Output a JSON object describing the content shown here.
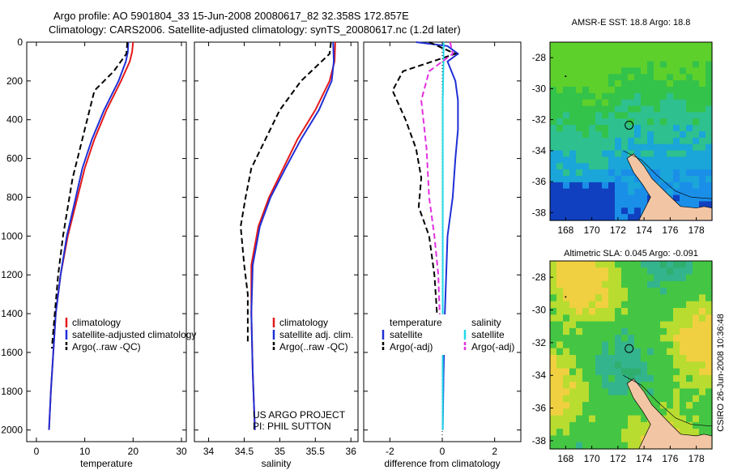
{
  "header": {
    "line1": "Argo profile: AO 5901804_33 15-Jun-2008 20080617_82 32.358S 172.857E",
    "line2": "Climatology: CARS2006. Satellite-adjusted climatology: synTS_20080617.nc (1.2d later)"
  },
  "side_label": "CSIRO 26-Jun-2008 10:36:48",
  "project": {
    "line1": "US ARGO PROJECT",
    "line2": "PI: PHIL SUTTON"
  },
  "maps": [
    {
      "title": "AMSR-E SST: 18.8 Argo: 18.8"
    },
    {
      "title": "Altimetric SLA: 0.045 Argo: -0.091"
    }
  ],
  "colors": {
    "climatology": "#e41a1a",
    "satellite": "#1f2fd6",
    "argo": "#000000",
    "argo_adj": "#e030e0",
    "satellite_sal": "#22d8e8",
    "land": "#f2c6a4"
  },
  "chart_data": [
    {
      "type": "line",
      "xlabel": "temperature",
      "xlim": [
        -2,
        31
      ],
      "ylim": [
        2060,
        0
      ],
      "xticks": [
        "0",
        "10",
        "20",
        "30"
      ],
      "yticks": [
        "0",
        "200",
        "400",
        "600",
        "800",
        "1000",
        "1200",
        "1400",
        "1600",
        "1800",
        "2000"
      ],
      "legend": [
        "climatology",
        "satellite-adjusted climatology",
        "Argo(..raw -QC)"
      ],
      "series": [
        {
          "name": "climatology",
          "points": [
            [
              20,
              0
            ],
            [
              19.8,
              50
            ],
            [
              19.3,
              100
            ],
            [
              17.5,
              200
            ],
            [
              14.5,
              350
            ],
            [
              12,
              500
            ],
            [
              10,
              650
            ],
            [
              8,
              850
            ],
            [
              6.5,
              1000
            ],
            [
              5,
              1200
            ],
            [
              4,
              1400
            ],
            [
              3.5,
              1600
            ],
            [
              3,
              1800
            ],
            [
              2.6,
              2000
            ]
          ]
        },
        {
          "name": "satellite-adjusted climatology",
          "points": [
            [
              19,
              0
            ],
            [
              18.9,
              50
            ],
            [
              18.5,
              100
            ],
            [
              17,
              200
            ],
            [
              14,
              350
            ],
            [
              11.5,
              500
            ],
            [
              9.5,
              650
            ],
            [
              7.7,
              850
            ],
            [
              6.3,
              1000
            ],
            [
              5,
              1200
            ],
            [
              4,
              1400
            ],
            [
              3.5,
              1600
            ],
            [
              3,
              1800
            ],
            [
              2.6,
              2000
            ]
          ]
        },
        {
          "name": "Argo(..raw -QC)",
          "points": [
            [
              18.8,
              0
            ],
            [
              18.6,
              60
            ],
            [
              16,
              150
            ],
            [
              12,
              250
            ],
            [
              10.5,
              400
            ],
            [
              9,
              550
            ],
            [
              7.5,
              700
            ],
            [
              6.5,
              850
            ],
            [
              5.5,
              1000
            ],
            [
              4.5,
              1200
            ],
            [
              3.8,
              1400
            ],
            [
              3.2,
              1580
            ]
          ]
        }
      ]
    },
    {
      "type": "line",
      "xlabel": "salinity",
      "xlim": [
        33.8,
        36.1
      ],
      "ylim": [
        2060,
        0
      ],
      "xticks": [
        "34",
        "34.5",
        "35",
        "35.5",
        "36"
      ],
      "yticks": [],
      "legend": [
        "climatology",
        "satellite adj. clim.",
        "Argo(..raw -QC)"
      ],
      "series": [
        {
          "name": "climatology",
          "points": [
            [
              35.78,
              0
            ],
            [
              35.77,
              100
            ],
            [
              35.7,
              200
            ],
            [
              35.5,
              350
            ],
            [
              35.25,
              500
            ],
            [
              35.05,
              650
            ],
            [
              34.85,
              800
            ],
            [
              34.7,
              950
            ],
            [
              34.6,
              1150
            ],
            [
              34.6,
              1400
            ],
            [
              34.62,
              1700
            ],
            [
              34.65,
              2000
            ]
          ]
        },
        {
          "name": "satellite adj. clim.",
          "points": [
            [
              35.75,
              0
            ],
            [
              35.76,
              100
            ],
            [
              35.73,
              200
            ],
            [
              35.55,
              350
            ],
            [
              35.3,
              500
            ],
            [
              35.08,
              650
            ],
            [
              34.87,
              800
            ],
            [
              34.72,
              950
            ],
            [
              34.62,
              1150
            ],
            [
              34.6,
              1400
            ],
            [
              34.62,
              1700
            ],
            [
              34.65,
              2000
            ]
          ]
        },
        {
          "name": "Argo(..raw -QC)",
          "points": [
            [
              35.72,
              0
            ],
            [
              35.7,
              60
            ],
            [
              35.3,
              200
            ],
            [
              35.0,
              350
            ],
            [
              34.8,
              500
            ],
            [
              34.6,
              650
            ],
            [
              34.52,
              800
            ],
            [
              34.45,
              950
            ],
            [
              34.5,
              1150
            ],
            [
              34.55,
              1300
            ],
            [
              34.55,
              1550
            ]
          ]
        }
      ]
    },
    {
      "type": "line",
      "xlabel": "difference from climatology",
      "xlim": [
        -3,
        3
      ],
      "ylim": [
        2060,
        0
      ],
      "xticks": [
        "-2",
        "0",
        "2"
      ],
      "yticks": [],
      "legend_groups": [
        {
          "heading": "temperature",
          "items": [
            "satellite",
            "Argo(-adj)"
          ]
        },
        {
          "heading": "salinity",
          "items": [
            "satellite",
            "Argo(-adj)"
          ]
        }
      ],
      "series": [
        {
          "name": "satellite",
          "group": "temperature",
          "points": [
            [
              -1,
              0
            ],
            [
              0.2,
              20
            ],
            [
              0.6,
              60
            ],
            [
              0.2,
              100
            ],
            [
              0.5,
              200
            ],
            [
              0.6,
              300
            ],
            [
              0.6,
              450
            ],
            [
              0.5,
              600
            ],
            [
              0.4,
              800
            ],
            [
              0.2,
              1000
            ],
            [
              0.1,
              1400
            ],
            [
              0.05,
              1700
            ],
            [
              0.02,
              2000
            ]
          ]
        },
        {
          "name": "Argo(-adj)",
          "group": "temperature",
          "points": [
            [
              -0.5,
              0
            ],
            [
              0.5,
              60
            ],
            [
              -1.5,
              150
            ],
            [
              -1.9,
              250
            ],
            [
              -1.4,
              400
            ],
            [
              -1.0,
              550
            ],
            [
              -0.8,
              700
            ],
            [
              -0.9,
              850
            ],
            [
              -0.5,
              1000
            ],
            [
              -0.3,
              1200
            ],
            [
              -0.2,
              1400
            ],
            [
              -0.2,
              1580
            ]
          ]
        },
        {
          "name": "satellite",
          "group": "salinity",
          "points": [
            [
              0.05,
              0
            ],
            [
              0.05,
              100
            ],
            [
              0.02,
              300
            ],
            [
              0.02,
              600
            ],
            [
              0.02,
              1000
            ],
            [
              0.02,
              1500
            ],
            [
              0.02,
              2000
            ]
          ]
        },
        {
          "name": "Argo(-adj)",
          "group": "salinity",
          "points": [
            [
              0.3,
              0
            ],
            [
              0.4,
              60
            ],
            [
              -0.5,
              150
            ],
            [
              -0.8,
              300
            ],
            [
              -0.6,
              550
            ],
            [
              -0.5,
              800
            ],
            [
              -0.3,
              1000
            ],
            [
              -0.15,
              1200
            ],
            [
              -0.1,
              1400
            ],
            [
              -0.1,
              1580
            ]
          ]
        }
      ]
    },
    {
      "type": "heatmap",
      "title": "AMSR-E SST: 18.8 Argo: 18.8",
      "xticks": [
        "168",
        "170",
        "172",
        "174",
        "176",
        "178"
      ],
      "yticks": [
        "-28",
        "-30",
        "-32",
        "-34",
        "-36",
        "-38"
      ],
      "xlim": [
        166.8,
        179.2
      ],
      "ylim": [
        -38.5,
        -27
      ]
    },
    {
      "type": "heatmap",
      "title": "Altimetric SLA: 0.045 Argo: -0.091",
      "xticks": [
        "168",
        "170",
        "172",
        "174",
        "176",
        "178"
      ],
      "yticks": [
        "-28",
        "-30",
        "-32",
        "-34",
        "-36",
        "-38"
      ],
      "xlim": [
        166.8,
        179.2
      ],
      "ylim": [
        -38.5,
        -27
      ]
    }
  ]
}
